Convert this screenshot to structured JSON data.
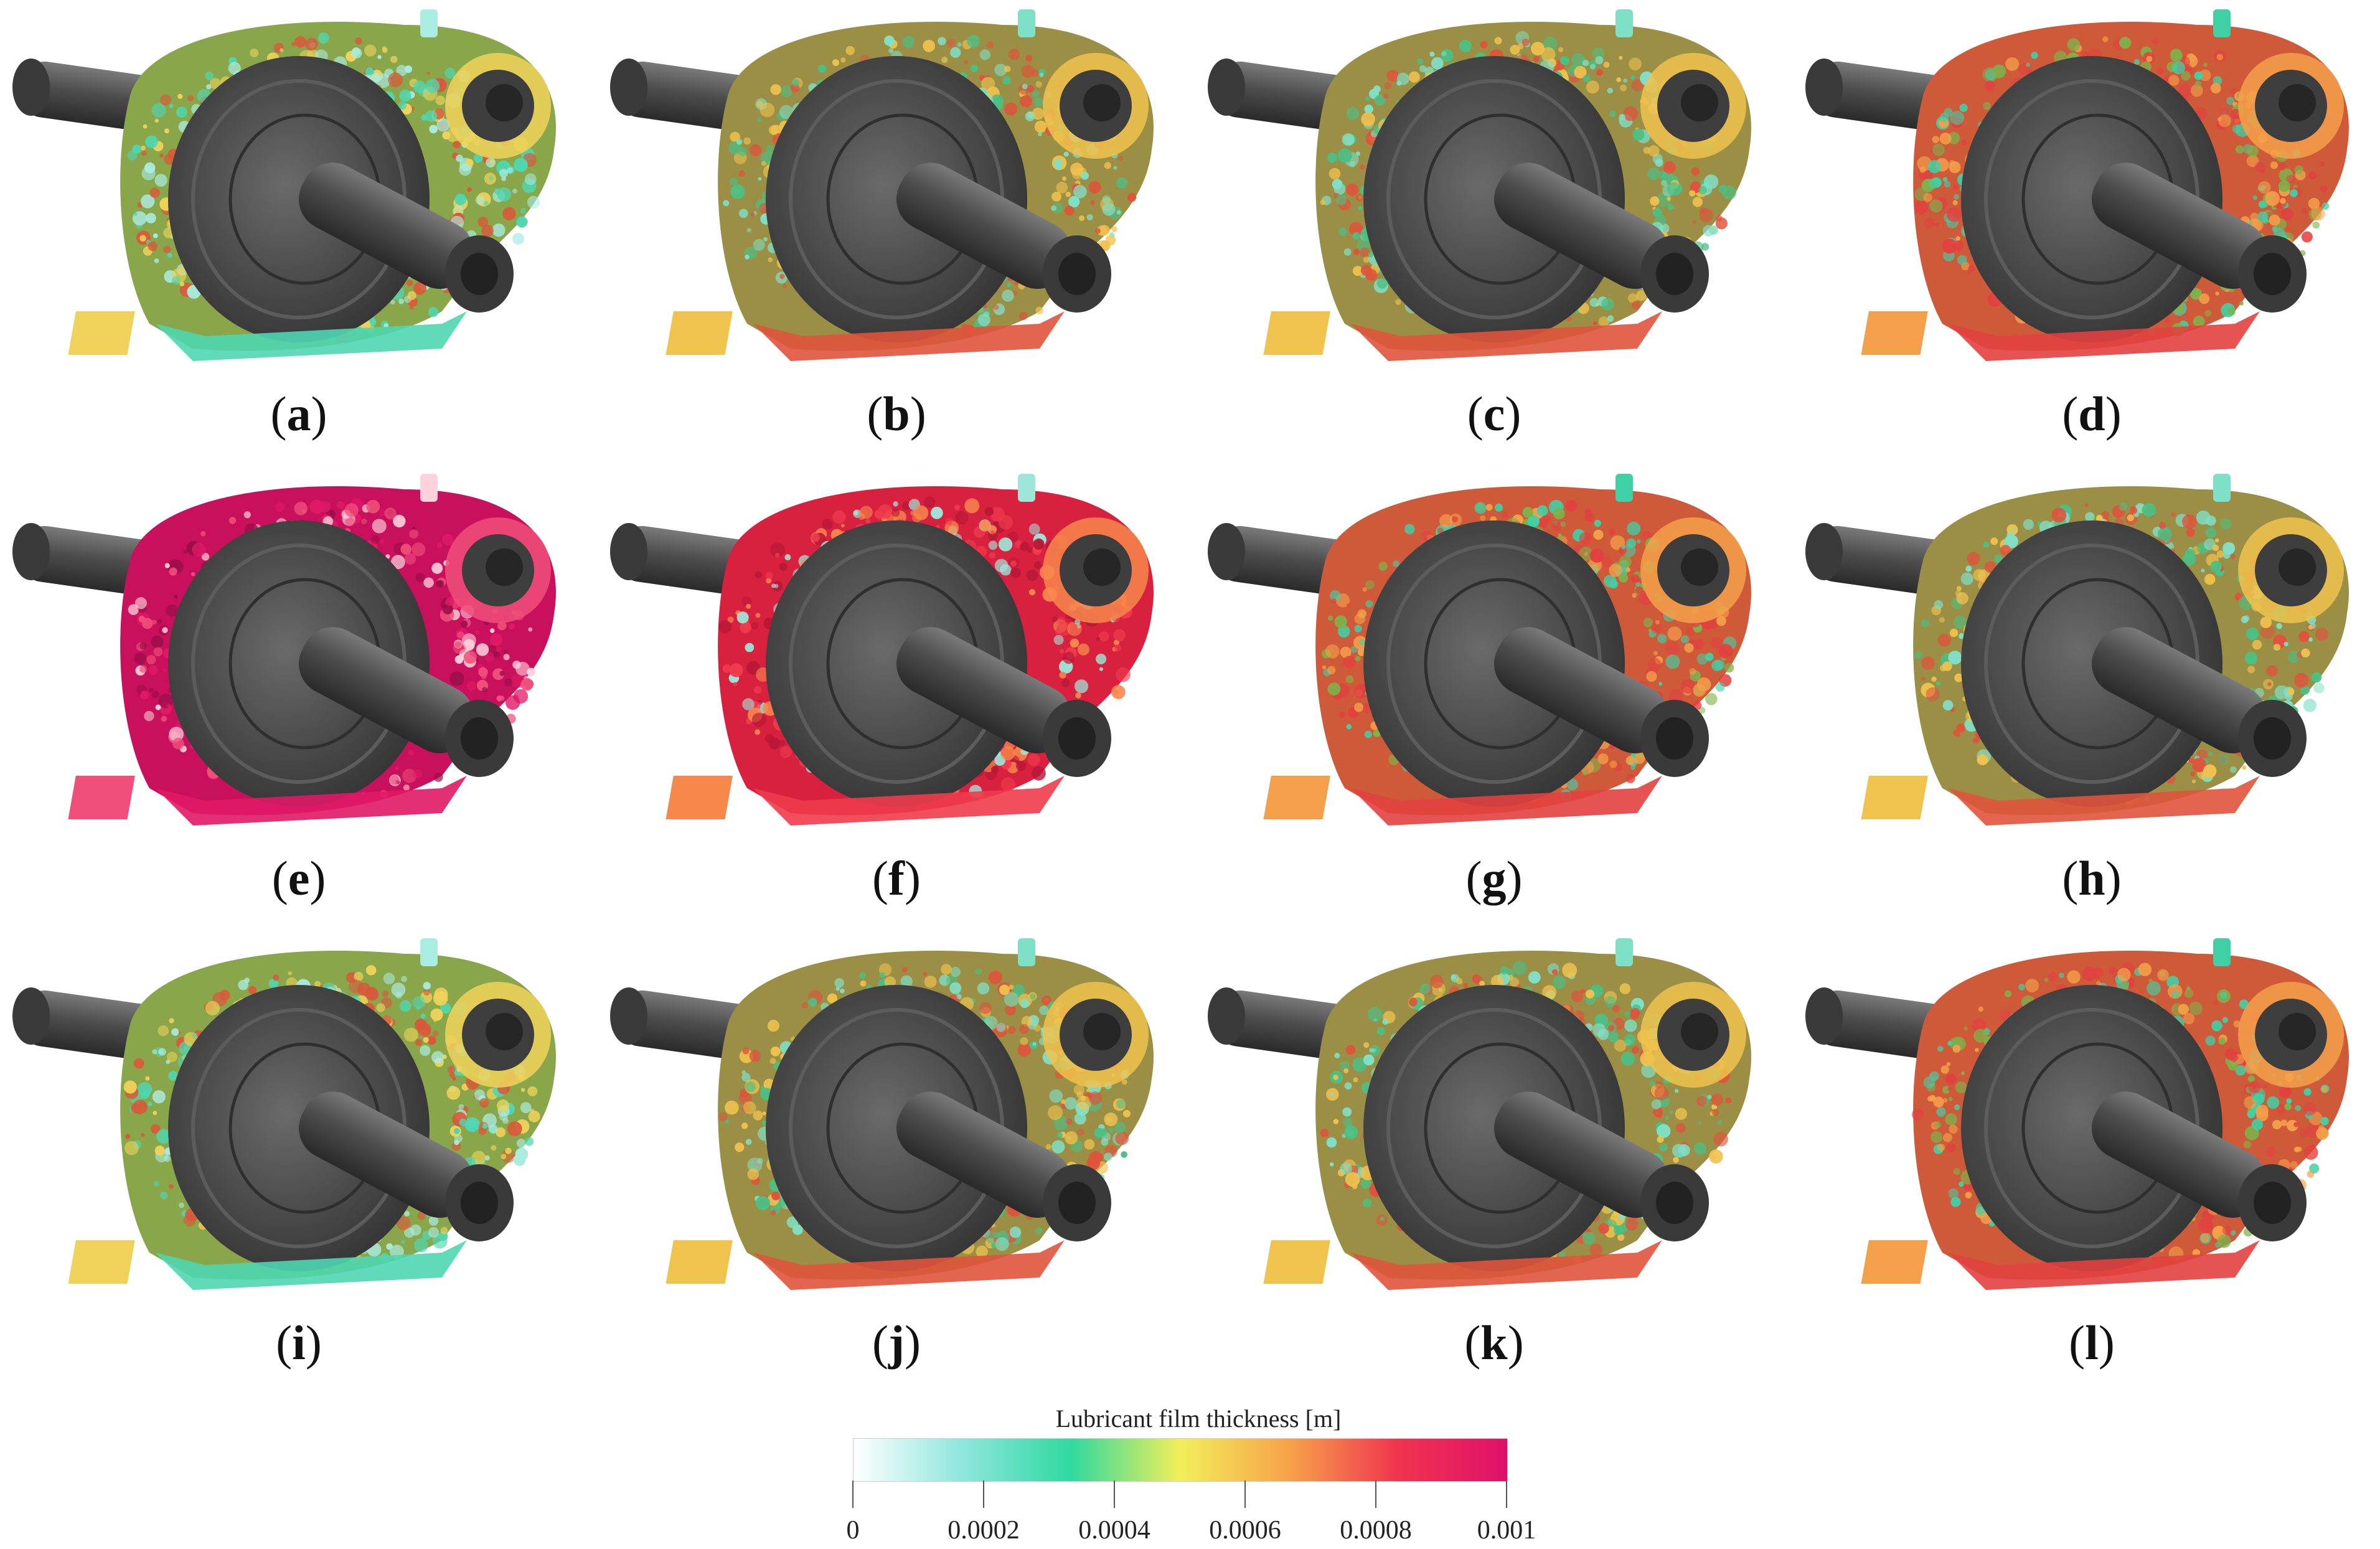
{
  "panels": [
    {
      "label": "a",
      "variant": "mixed-cyan"
    },
    {
      "label": "b",
      "variant": "mixed"
    },
    {
      "label": "c",
      "variant": "mixed"
    },
    {
      "label": "d",
      "variant": "mixed-red"
    },
    {
      "label": "e",
      "variant": "magenta"
    },
    {
      "label": "f",
      "variant": "red"
    },
    {
      "label": "g",
      "variant": "mixed-red"
    },
    {
      "label": "h",
      "variant": "mixed"
    },
    {
      "label": "i",
      "variant": "mixed-cyan"
    },
    {
      "label": "j",
      "variant": "mixed"
    },
    {
      "label": "k",
      "variant": "mixed"
    },
    {
      "label": "l",
      "variant": "mixed-red"
    }
  ],
  "colorbar": {
    "title": "Lubricant film thickness [m]",
    "min": 0,
    "max": 0.001,
    "ticks": [
      "0",
      "0.0002",
      "0.0004",
      "0.0006",
      "0.0008",
      "0.001"
    ],
    "colors": [
      "#ffffff",
      "#8ee6dc",
      "#2fd9a0",
      "#f2ef5a",
      "#f7a24a",
      "#f0344f",
      "#e0106a"
    ]
  }
}
